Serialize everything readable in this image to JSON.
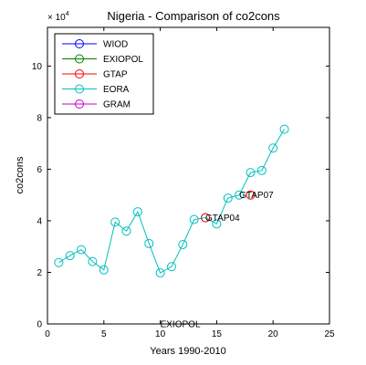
{
  "chart_data": {
    "type": "line",
    "title": "Nigeria - Comparison of co2cons",
    "xlabel": "Years 1990-2010",
    "ylabel": "co2cons",
    "y_exponent_label": "× 10",
    "y_exponent_power": "4",
    "xlim": [
      0,
      25
    ],
    "ylim": [
      0,
      11.5
    ],
    "xticks": [
      0,
      5,
      10,
      15,
      20,
      25
    ],
    "yticks": [
      0,
      2,
      4,
      6,
      8,
      10
    ],
    "grid": false,
    "legend_position": "top-left",
    "legend": [
      {
        "name": "WIOD",
        "color": "#0000ff"
      },
      {
        "name": "EXIOPOL",
        "color": "#008000"
      },
      {
        "name": "GTAP",
        "color": "#ff0000"
      },
      {
        "name": "EORA",
        "color": "#00bfbf"
      },
      {
        "name": "GRAM",
        "color": "#bf00bf"
      }
    ],
    "series": [
      {
        "name": "EORA",
        "color": "#00bfbf",
        "x": [
          1,
          2,
          3,
          4,
          5,
          6,
          7,
          8,
          9,
          10,
          11,
          12,
          13,
          14,
          15,
          16,
          17,
          18,
          19,
          20,
          21
        ],
        "y": [
          2.38,
          2.65,
          2.88,
          2.42,
          2.1,
          3.95,
          3.6,
          4.35,
          3.12,
          1.98,
          2.22,
          3.08,
          4.05,
          4.12,
          3.88,
          4.88,
          5.0,
          5.87,
          5.95,
          6.82,
          7.55
        ]
      },
      {
        "name": "GTAP",
        "color": "#ff0000",
        "x": [
          14,
          18
        ],
        "y": [
          4.12,
          5.0
        ]
      }
    ],
    "annotations": [
      {
        "text": "GTAP04",
        "x": 14,
        "y": 4.12
      },
      {
        "text": "GTAP07",
        "x": 17,
        "y": 5.0
      },
      {
        "text": "EXIOPOL",
        "x": 10,
        "y": 0
      }
    ]
  }
}
